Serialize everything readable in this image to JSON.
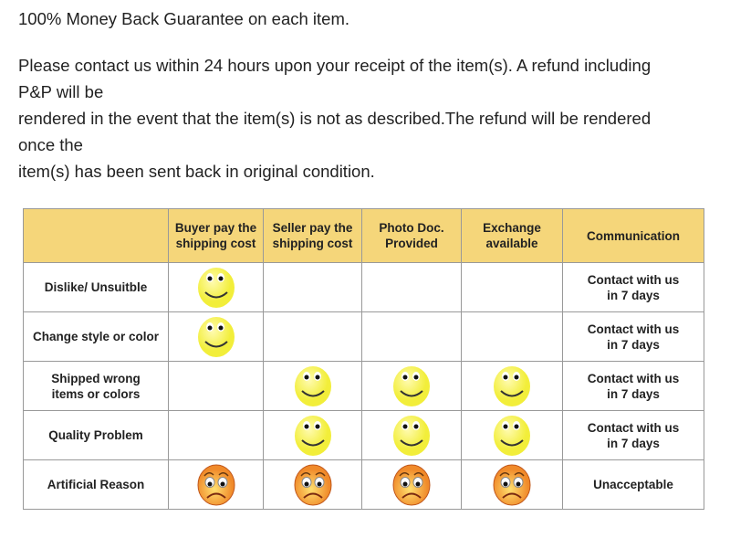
{
  "intro": {
    "headline": "100% Money Back Guarantee on each item.",
    "lines": [
      "Please contact us within 24 hours upon your receipt of the item(s). A refund including",
      "P&P will be",
      "rendered in the event that the item(s) is not as described.The refund will be rendered",
      "once the",
      "item(s) has been sent back in original condition."
    ]
  },
  "table": {
    "headers": [
      "",
      "Buyer pay the\nshipping cost",
      "Seller pay the\nshipping cost",
      "Photo Doc.\nProvided",
      "Exchange\navailable",
      "Communication"
    ],
    "rows": [
      {
        "label": "Dislike/ Unsuitble",
        "cells": [
          "happy",
          "",
          "",
          ""
        ],
        "communication": "Contact with us\nin 7 days"
      },
      {
        "label": "Change style or color",
        "cells": [
          "happy",
          "",
          "",
          ""
        ],
        "communication": "Contact with us\nin 7 days"
      },
      {
        "label": "Shipped wrong\nitems or colors",
        "cells": [
          "",
          "happy",
          "happy",
          "happy"
        ],
        "communication": "Contact with us\nin 7 days"
      },
      {
        "label": "Quality Problem",
        "cells": [
          "",
          "happy",
          "happy",
          "happy"
        ],
        "communication": "Contact with us\nin 7 days"
      },
      {
        "label": "Artificial Reason",
        "cells": [
          "sad",
          "sad",
          "sad",
          "sad"
        ],
        "communication": "Unacceptable"
      }
    ],
    "colors": {
      "header": "#f5d67a",
      "happy": "#f2ee3a",
      "sad": "#f08a2a"
    }
  }
}
